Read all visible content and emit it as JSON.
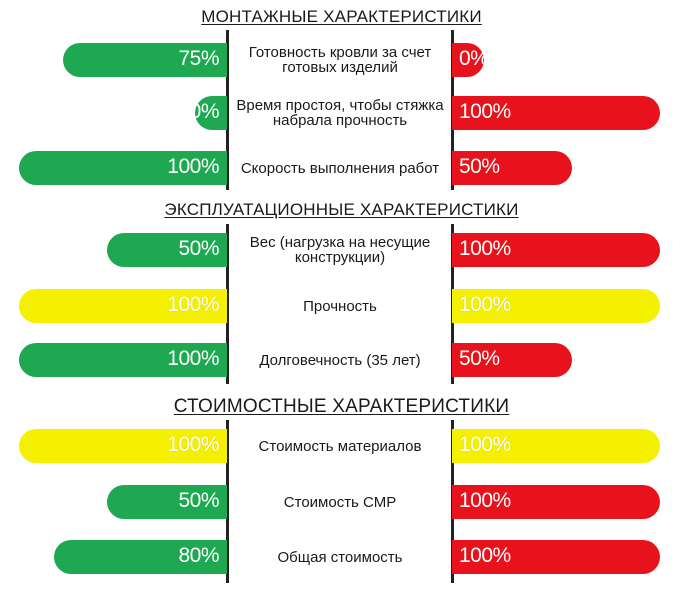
{
  "chart_data": {
    "type": "bar",
    "sections": [
      {
        "title": "МОНТАЖНЫЕ ХАРАКТЕРИСТИКИ",
        "rows": [
          {
            "label": "Готовность кровли за счет готовых изделий",
            "left": {
              "value": 75,
              "text": "75%",
              "color": "#1da851"
            },
            "right": {
              "value": 0,
              "text": "0%",
              "color": "#e8121d"
            }
          },
          {
            "label": "Время простоя, чтобы стяжка набрала прочность",
            "left": {
              "value": 0,
              "text": "0%",
              "color": "#1da851"
            },
            "right": {
              "value": 100,
              "text": "100%",
              "color": "#e8121d"
            }
          },
          {
            "label": "Скорость выполнения работ",
            "left": {
              "value": 100,
              "text": "100%",
              "color": "#1da851"
            },
            "right": {
              "value": 50,
              "text": "50%",
              "color": "#e8121d"
            }
          }
        ]
      },
      {
        "title": "ЭКСПЛУАТАЦИОННЫЕ ХАРАКТЕРИСТИКИ",
        "rows": [
          {
            "label": "Вес (нагрузка на несущие конструкции)",
            "left": {
              "value": 50,
              "text": "50%",
              "color": "#1da851"
            },
            "right": {
              "value": 100,
              "text": "100%",
              "color": "#e8121d"
            }
          },
          {
            "label": "Прочность",
            "left": {
              "value": 100,
              "text": "100%",
              "color": "#f4f000"
            },
            "right": {
              "value": 100,
              "text": "100%",
              "color": "#f4f000"
            }
          },
          {
            "label": "Долговечность (35 лет)",
            "left": {
              "value": 100,
              "text": "100%",
              "color": "#1da851"
            },
            "right": {
              "value": 50,
              "text": "50%",
              "color": "#e8121d"
            }
          }
        ]
      },
      {
        "title": "СТОИМОСТНЫЕ ХАРАКТЕРИСТИКИ",
        "rows": [
          {
            "label": "Стоимость материалов",
            "left": {
              "value": 100,
              "text": "100%",
              "color": "#f4f000"
            },
            "right": {
              "value": 100,
              "text": "100%",
              "color": "#f4f000"
            }
          },
          {
            "label": "Стоимость СМР",
            "left": {
              "value": 50,
              "text": "50%",
              "color": "#1da851"
            },
            "right": {
              "value": 100,
              "text": "100%",
              "color": "#e8121d"
            }
          },
          {
            "label": "Общая стоимость",
            "left": {
              "value": 80,
              "text": "80%",
              "color": "#1da851"
            },
            "right": {
              "value": 100,
              "text": "100%",
              "color": "#e8121d"
            }
          }
        ]
      }
    ],
    "xlim": [
      0,
      100
    ],
    "grid": false,
    "legend": "none"
  }
}
